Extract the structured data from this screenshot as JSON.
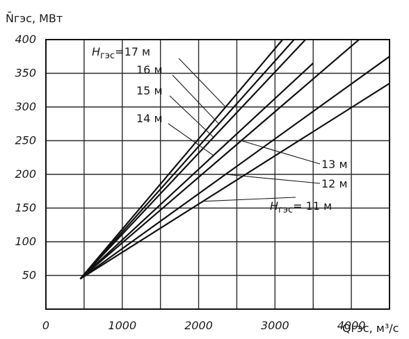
{
  "chart_data": {
    "type": "line",
    "title": "",
    "ylabel": "N̄гэс, МВт",
    "xlabel": "Qгэс, м³/с",
    "xlim": [
      0,
      4500
    ],
    "ylim": [
      0,
      400
    ],
    "grid": true,
    "x_ticks": [
      {
        "value": 0,
        "label": "0"
      },
      {
        "value": 1000,
        "label": "1000"
      },
      {
        "value": 2000,
        "label": "2000"
      },
      {
        "value": 3000,
        "label": "3000"
      },
      {
        "value": 4000,
        "label": "4000"
      }
    ],
    "y_ticks": [
      {
        "value": 50,
        "label": "50"
      },
      {
        "value": 100,
        "label": "100"
      },
      {
        "value": 150,
        "label": "150"
      },
      {
        "value": 200,
        "label": "200"
      },
      {
        "value": 250,
        "label": "250"
      },
      {
        "value": 300,
        "label": "300"
      },
      {
        "value": 350,
        "label": "350"
      },
      {
        "value": 400,
        "label": "400"
      }
    ],
    "series": [
      {
        "name": "17 м",
        "x": [
          450,
          3100
        ],
        "y": [
          45,
          400
        ]
      },
      {
        "name": "16 м",
        "x": [
          450,
          3250
        ],
        "y": [
          45,
          400
        ]
      },
      {
        "name": "15 м",
        "x": [
          450,
          3400
        ],
        "y": [
          45,
          400
        ]
      },
      {
        "name": "14 м",
        "x": [
          450,
          3500
        ],
        "y": [
          45,
          365
        ]
      },
      {
        "name": "13 м",
        "x": [
          450,
          4100
        ],
        "y": [
          45,
          400
        ]
      },
      {
        "name": "12 м",
        "x": [
          450,
          4500
        ],
        "y": [
          45,
          375
        ]
      },
      {
        "name": "11 м",
        "x": [
          450,
          4500
        ],
        "y": [
          45,
          335
        ]
      }
    ],
    "annotations": [
      {
        "id": "h17",
        "prefix": "H",
        "subscript": "гэс",
        "suffix": "=17 м",
        "points_to": "17 м"
      },
      {
        "id": "h16",
        "prefix": "",
        "subscript": "",
        "suffix": "16 м",
        "points_to": "16 м"
      },
      {
        "id": "h15",
        "prefix": "",
        "subscript": "",
        "suffix": "15 м",
        "points_to": "15 м"
      },
      {
        "id": "h14",
        "prefix": "",
        "subscript": "",
        "suffix": "14 м",
        "points_to": "14 м"
      },
      {
        "id": "h13",
        "prefix": "",
        "subscript": "",
        "suffix": "13 м",
        "points_to": "13 м"
      },
      {
        "id": "h12",
        "prefix": "",
        "subscript": "",
        "suffix": "12 м",
        "points_to": "12 м"
      },
      {
        "id": "h11",
        "prefix": "H",
        "subscript": "гэс",
        "suffix": "= 11 м",
        "points_to": "11 м"
      }
    ]
  }
}
